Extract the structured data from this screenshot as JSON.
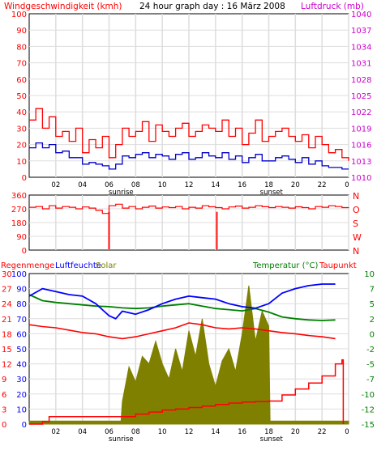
{
  "header": {
    "wind_label": "Windgeschwindigkeit (kmh)",
    "title": "24 hour graph day : 16 März 2008",
    "pressure_label": "Luftdruck (mb)"
  },
  "colors": {
    "wind": "#ff0000",
    "wind_avg": "#0000cc",
    "direction": "#ff0000",
    "direction_bar": "#ff9999",
    "rain": "#ff0000",
    "humidity": "#0000ff",
    "solar": "#808000",
    "temperature": "#008000",
    "dewpoint": "#ff0000",
    "pressure_axis": "#cc00cc",
    "grid": "#dddddd",
    "plot_bg": "#ffffff"
  },
  "sun": {
    "sunrise": "sunrise",
    "sunset": "sunset"
  },
  "chart_data": [
    {
      "id": "wind",
      "type": "line",
      "title": "24 hour graph day : 16 März 2008",
      "ylabel": "Windgeschwindigkeit (kmh)",
      "ylabel_right": "Luftdruck (mb)",
      "ylim": [
        0,
        100
      ],
      "y2lim": [
        1010,
        1040
      ],
      "y_ticks": [
        "0",
        "10",
        "20",
        "30",
        "40",
        "50",
        "60",
        "70",
        "80",
        "90",
        "100"
      ],
      "y2_ticks": [
        "1010",
        "1013",
        "1016",
        "1019",
        "1022",
        "1025",
        "1028",
        "1031",
        "1034",
        "1037",
        "1040"
      ],
      "x_ticks": [
        "02",
        "04",
        "06",
        "08",
        "10",
        "12",
        "14",
        "16",
        "18",
        "20",
        "22",
        "0"
      ],
      "grid": true,
      "series": [
        {
          "name": "gust",
          "x": [
            0,
            0.5,
            1,
            1.5,
            2,
            2.5,
            3,
            3.5,
            4,
            4.5,
            5,
            5.5,
            6,
            6.5,
            7,
            7.5,
            8,
            8.5,
            9,
            9.5,
            10,
            10.5,
            11,
            11.5,
            12,
            12.5,
            13,
            13.5,
            14,
            14.5,
            15,
            15.5,
            16,
            16.5,
            17,
            17.5,
            18,
            18.5,
            19,
            19.5,
            20,
            20.5,
            21,
            21.5,
            22,
            22.5,
            23,
            23.5,
            24
          ],
          "values": [
            35,
            42,
            30,
            37,
            25,
            28,
            22,
            30,
            15,
            23,
            18,
            25,
            12,
            20,
            30,
            25,
            28,
            34,
            22,
            32,
            28,
            25,
            30,
            33,
            25,
            28,
            32,
            30,
            28,
            35,
            25,
            30,
            20,
            27,
            35,
            22,
            25,
            28,
            30,
            25,
            22,
            26,
            18,
            25,
            20,
            15,
            17,
            12,
            10
          ]
        },
        {
          "name": "average",
          "x": [
            0,
            0.5,
            1,
            1.5,
            2,
            2.5,
            3,
            3.5,
            4,
            4.5,
            5,
            5.5,
            6,
            6.5,
            7,
            7.5,
            8,
            8.5,
            9,
            9.5,
            10,
            10.5,
            11,
            11.5,
            12,
            12.5,
            13,
            13.5,
            14,
            14.5,
            15,
            15.5,
            16,
            16.5,
            17,
            17.5,
            18,
            18.5,
            19,
            19.5,
            20,
            20.5,
            21,
            21.5,
            22,
            22.5,
            23,
            23.5,
            24
          ],
          "values": [
            18,
            21,
            18,
            20,
            15,
            16,
            12,
            12,
            8,
            9,
            8,
            7,
            5,
            8,
            13,
            12,
            14,
            15,
            12,
            14,
            13,
            11,
            14,
            15,
            11,
            12,
            15,
            13,
            12,
            15,
            11,
            13,
            9,
            12,
            14,
            10,
            10,
            12,
            13,
            11,
            9,
            12,
            8,
            10,
            7,
            6,
            6,
            5,
            5
          ]
        }
      ]
    },
    {
      "id": "direction",
      "type": "line",
      "y_ticks": [
        "0",
        "90",
        "180",
        "270",
        "360"
      ],
      "y2_ticks": [
        "N",
        "W",
        "S",
        "O",
        "N"
      ],
      "ylim": [
        0,
        360
      ],
      "x_ticks": [],
      "grid": true,
      "series": [
        {
          "name": "direction",
          "x": [
            0,
            0.5,
            1,
            1.5,
            2,
            2.5,
            3,
            3.5,
            4,
            4.5,
            5,
            5.5,
            6,
            6.5,
            7,
            7.5,
            8,
            8.5,
            9,
            9.5,
            10,
            10.5,
            11,
            11.5,
            12,
            12.5,
            13,
            13.5,
            14,
            14.5,
            15,
            15.5,
            16,
            16.5,
            17,
            17.5,
            18,
            18.5,
            19,
            19.5,
            20,
            20.5,
            21,
            21.5,
            22,
            22.5,
            23,
            23.5,
            24
          ],
          "values": [
            280,
            285,
            270,
            290,
            275,
            285,
            280,
            270,
            282,
            275,
            260,
            240,
            290,
            300,
            275,
            285,
            270,
            280,
            288,
            275,
            282,
            278,
            285,
            270,
            280,
            275,
            290,
            283,
            278,
            270,
            282,
            288,
            275,
            280,
            290,
            284,
            278,
            285,
            280,
            275,
            283,
            278,
            270,
            285,
            280,
            290,
            285,
            278,
            280
          ]
        }
      ],
      "spikes": [
        {
          "x": 6.0,
          "value": 0
        },
        {
          "x": 14.1,
          "value": 0
        }
      ]
    },
    {
      "id": "climate",
      "type": "line",
      "ylabel": "Regenmenge",
      "ylabel_2": "Luftfeuchte",
      "ylabel_3": "Solar",
      "ylabel_right": "Temperatur (°C)",
      "ylabel_right_2": "Taupunkt",
      "y_ticks_outer": [
        "0",
        "3",
        "6",
        "9",
        "12",
        "15",
        "18",
        "21",
        "24",
        "27",
        "30"
      ],
      "y_ticks_inner": [
        "0",
        "10",
        "20",
        "30",
        "40",
        "50",
        "60",
        "70",
        "80",
        "90",
        "100"
      ],
      "y2_ticks": [
        "-15",
        "-12",
        "-10",
        "-7",
        "-5",
        "-2",
        "0",
        "2",
        "5",
        "7",
        "10"
      ],
      "ylim": [
        0,
        100
      ],
      "y2lim": [
        -15,
        10
      ],
      "x_ticks": [
        "02",
        "04",
        "06",
        "08",
        "10",
        "12",
        "14",
        "16",
        "18",
        "20",
        "22",
        "0"
      ],
      "grid": true,
      "series": [
        {
          "name": "Luftfeuchte",
          "x": [
            0,
            1,
            2,
            3,
            4,
            5,
            6,
            6.5,
            7,
            8,
            9,
            10,
            11,
            12,
            13,
            14,
            15,
            16,
            17,
            18,
            19,
            20,
            21,
            22,
            23
          ],
          "values": [
            85,
            90,
            88,
            86,
            85,
            80,
            72,
            70,
            75,
            73,
            76,
            80,
            83,
            85,
            84,
            83,
            80,
            78,
            77,
            80,
            87,
            90,
            92,
            93,
            93
          ]
        },
        {
          "name": "Temperatur",
          "x": [
            0,
            1,
            2,
            3,
            4,
            5,
            6,
            7,
            8,
            9,
            10,
            11,
            12,
            13,
            14,
            15,
            16,
            17,
            18,
            19,
            20,
            21,
            22,
            23
          ],
          "values": [
            6.5,
            5.5,
            5.2,
            5,
            4.8,
            4.6,
            4.5,
            4.3,
            4.2,
            4.3,
            4.6,
            4.8,
            5,
            4.6,
            4.2,
            4,
            3.8,
            4.2,
            3.6,
            2.8,
            2.5,
            2.3,
            2.2,
            2.3
          ]
        },
        {
          "name": "Taupunkt",
          "x": [
            0,
            1,
            2,
            3,
            4,
            5,
            6,
            7,
            8,
            9,
            10,
            11,
            12,
            13,
            14,
            15,
            16,
            17,
            18,
            19,
            20,
            21,
            22,
            23
          ],
          "values": [
            1.5,
            1.2,
            1,
            0.6,
            0.2,
            0,
            -0.5,
            -0.8,
            -0.5,
            0,
            0.5,
            1,
            1.8,
            1.5,
            1,
            0.8,
            1,
            0.8,
            0.5,
            0.2,
            0,
            -0.3,
            -0.5,
            -0.8
          ]
        },
        {
          "name": "Solar",
          "x": [
            0,
            6.9,
            7.0,
            7.5,
            8.0,
            8.5,
            9.0,
            9.5,
            10.0,
            10.5,
            11.0,
            11.5,
            12.0,
            12.5,
            13.0,
            13.5,
            14.0,
            14.5,
            15.0,
            15.5,
            16.0,
            16.5,
            17.0,
            17.5,
            18.0,
            18.1,
            24
          ],
          "values": [
            2,
            2,
            15,
            38,
            28,
            45,
            40,
            55,
            40,
            30,
            50,
            35,
            62,
            45,
            70,
            40,
            25,
            42,
            50,
            35,
            60,
            92,
            55,
            75,
            65,
            2,
            2
          ]
        },
        {
          "name": "Regenmenge",
          "x": [
            0,
            1,
            1.5,
            2,
            3,
            4,
            5,
            6,
            7,
            8,
            9,
            10,
            11,
            12,
            13,
            14,
            15,
            16,
            17,
            18,
            19,
            20,
            21,
            22,
            23,
            23.5,
            23.6
          ],
          "values": [
            0,
            0.5,
            1.5,
            1.5,
            1.5,
            1.5,
            1.5,
            1.5,
            1.5,
            2.0,
            2.4,
            2.8,
            3.0,
            3.3,
            3.6,
            3.9,
            4.2,
            4.4,
            4.5,
            4.6,
            5.8,
            7.0,
            8.2,
            9.6,
            12.0,
            12.8,
            0
          ]
        }
      ]
    }
  ]
}
